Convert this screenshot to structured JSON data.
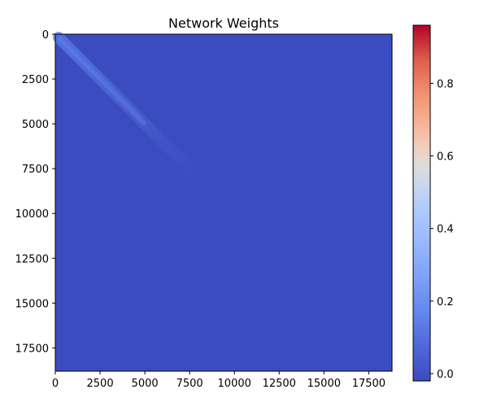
{
  "chart_data": {
    "type": "heatmap",
    "title": "Network Weights",
    "xlabel": "",
    "ylabel": "",
    "xlim": [
      0,
      18800
    ],
    "ylim": [
      18800,
      0
    ],
    "x_ticks": [
      "0",
      "2500",
      "5000",
      "7500",
      "10000",
      "12500",
      "15000",
      "17500"
    ],
    "y_ticks": [
      "0",
      "2500",
      "5000",
      "7500",
      "10000",
      "12500",
      "15000",
      "17500"
    ],
    "colormap": "coolwarm",
    "colorbar": {
      "range": [
        -0.02,
        0.96
      ],
      "ticks": [
        "0.0",
        "0.2",
        "0.4",
        "0.6",
        "0.8"
      ]
    },
    "background_value": 0.0,
    "diagonal_band": {
      "start": 0,
      "end": 9000,
      "peak_value": 0.12
    },
    "colors": {
      "base": "#3b4cc0",
      "band_peak": "#5b7be9",
      "cb_bottom": "#3b4cc0",
      "cb_mid": "#dddcdc",
      "cb_top": "#b40426"
    }
  }
}
